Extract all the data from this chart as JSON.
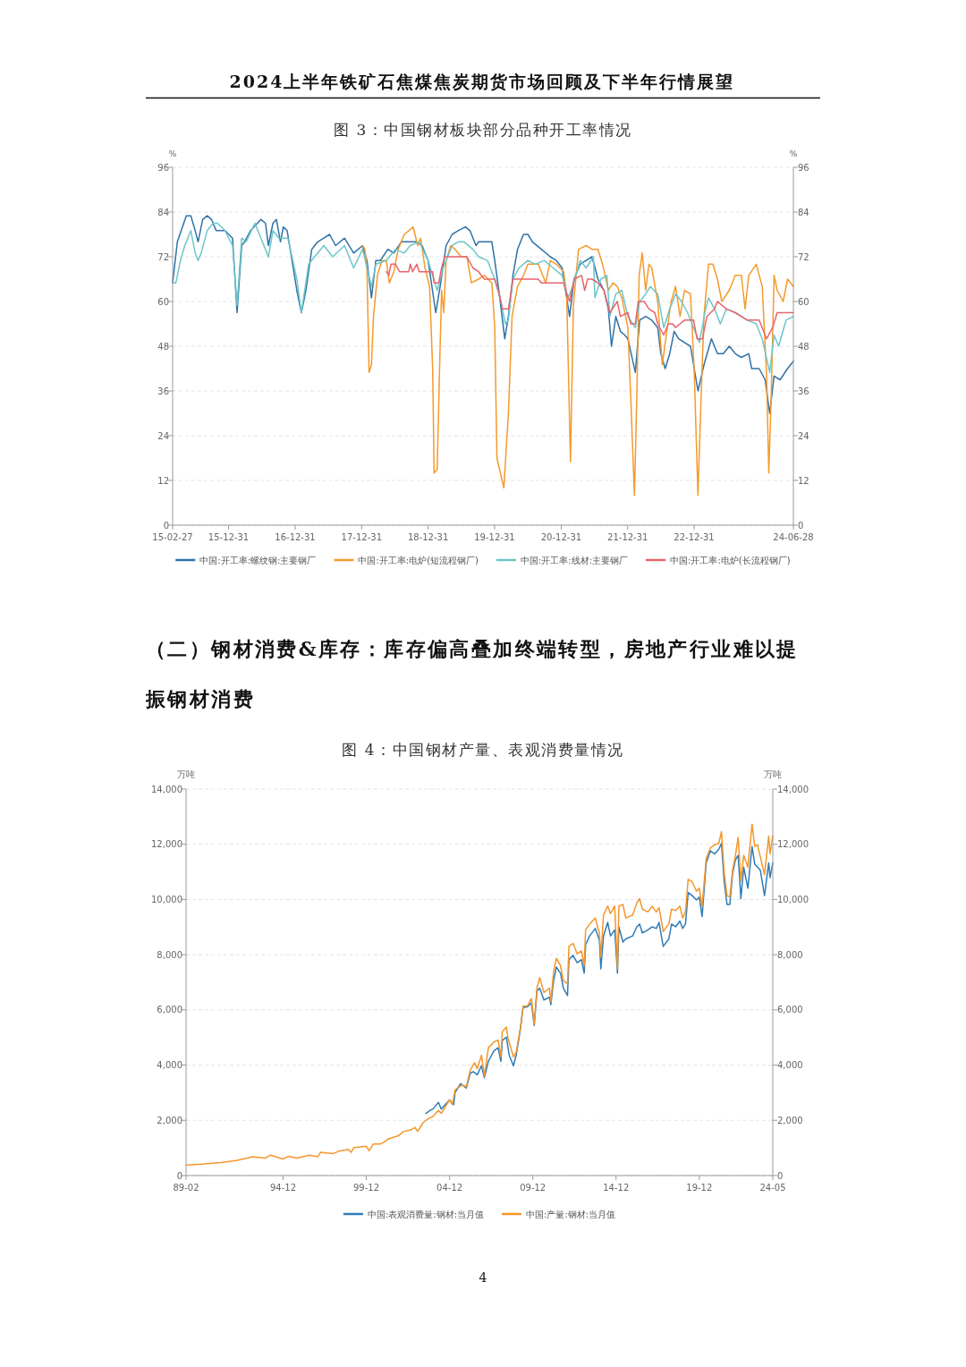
{
  "chart_data": [
    {
      "type": "line",
      "title": "图 3：中国钢材板块部分品种开工率情况",
      "ylabel": "%",
      "y2label": "%",
      "grid": "y",
      "legend": "bottom",
      "annotations": [
        "2024上半年铁矿石焦煤焦炭期货市场回顾及下半年行情展望"
      ],
      "xlim": [
        "2015-02-27",
        "2024-06-28"
      ],
      "xticks": [
        {
          "value": "2015-02-27",
          "label": "15-02-27"
        },
        {
          "value": "2015-12-31",
          "label": "15-12-31"
        },
        {
          "value": "2016-12-31",
          "label": "16-12-31"
        },
        {
          "value": "2017-12-31",
          "label": "17-12-31"
        },
        {
          "value": "2018-12-31",
          "label": "18-12-31"
        },
        {
          "value": "2019-12-31",
          "label": "19-12-31"
        },
        {
          "value": "2020-12-31",
          "label": "20-12-31"
        },
        {
          "value": "2021-12-31",
          "label": "21-12-31"
        },
        {
          "value": "2022-12-31",
          "label": "22-12-31"
        },
        {
          "value": "2024-06-28",
          "label": "24-06-28"
        }
      ],
      "ylim": [
        0,
        96
      ],
      "yticks": [
        0,
        12,
        24,
        36,
        48,
        60,
        72,
        84,
        96
      ],
      "y2lim": [
        0,
        96
      ],
      "y2ticks": [
        0,
        12,
        24,
        36,
        48,
        60,
        72,
        84,
        96
      ],
      "series": [
        {
          "name": "中国:开工率:螺纹钢:主要钢厂",
          "color": "#2e72a8",
          "x": [
            "2015-02-27",
            "2015-03-25",
            "2015-05-13",
            "2015-06-07",
            "2015-07-01",
            "2015-07-17",
            "2015-08-11",
            "2015-09-05",
            "2015-09-29",
            "2015-10-24",
            "2015-12-12",
            "2016-01-22",
            "2016-02-16",
            "2016-03-12",
            "2016-03-28",
            "2016-04-30",
            "2016-06-26",
            "2016-07-21",
            "2016-08-06",
            "2016-08-31",
            "2016-09-19",
            "2016-10-11",
            "2016-10-27",
            "2016-11-17",
            "2016-12-07",
            "2017-01-09",
            "2017-02-03",
            "2017-02-28",
            "2017-04-01",
            "2017-05-04",
            "2017-06-06",
            "2017-07-08",
            "2017-08-10",
            "2017-09-28",
            "2017-11-17",
            "2018-01-05",
            "2018-01-29",
            "2018-02-23",
            "2018-03-19",
            "2018-04-13",
            "2018-05-24",
            "2018-06-26",
            "2018-08-06",
            "2018-09-24",
            "2018-10-27",
            "2018-11-28",
            "2018-12-31",
            "2019-02-11",
            "2019-03-07",
            "2019-04-09",
            "2019-05-12",
            "2019-06-14",
            "2019-07-24",
            "2019-08-18",
            "2019-09-20",
            "2019-10-04",
            "2019-11-22",
            "2019-12-16",
            "2020-01-01",
            "2020-01-26",
            "2020-02-25",
            "2020-03-16",
            "2020-04-10",
            "2020-05-05",
            "2020-06-07",
            "2020-07-01",
            "2020-07-26",
            "2020-09-13",
            "2020-11-01",
            "2020-12-04",
            "2021-01-05",
            "2021-01-30",
            "2021-02-15",
            "2021-03-12",
            "2021-04-14",
            "2021-05-17",
            "2021-06-18",
            "2021-07-21",
            "2021-08-23",
            "2021-09-16",
            "2021-10-03",
            "2021-10-27",
            "2021-11-21",
            "2021-12-15",
            "2022-01-01",
            "2022-02-11",
            "2022-03-07",
            "2022-04-09",
            "2022-05-12",
            "2022-06-14",
            "2022-07-01",
            "2022-07-25",
            "2022-08-19",
            "2022-09-12",
            "2022-10-07",
            "2022-11-08",
            "2022-12-11",
            "2023-01-21",
            "2023-02-23",
            "2023-04-05",
            "2023-05-08",
            "2023-06-10",
            "2023-07-12",
            "2023-08-14",
            "2023-09-16",
            "2023-10-27",
            "2023-11-12",
            "2023-12-23",
            "2024-01-25",
            "2024-02-19",
            "2024-03-14",
            "2024-04-16",
            "2024-05-27",
            "2024-06-28"
          ],
          "values": [
            65,
            76,
            83,
            83,
            79,
            76,
            82,
            83,
            82,
            79,
            79,
            77,
            57,
            75,
            76,
            79,
            82,
            81,
            75,
            81,
            82,
            76,
            80,
            79,
            73,
            63,
            57,
            63,
            74,
            76,
            77,
            78,
            75,
            77,
            73,
            75,
            71,
            61,
            71,
            71,
            74,
            73,
            76,
            76,
            76,
            75,
            71,
            57,
            64,
            75,
            78,
            79,
            80,
            79,
            75,
            76,
            76,
            76,
            71,
            62,
            50,
            56,
            67,
            74,
            78,
            78,
            76,
            74,
            72,
            71,
            69,
            61,
            56,
            66,
            70,
            71,
            72,
            66,
            63,
            58,
            48,
            56,
            52,
            51,
            50,
            41,
            55,
            56,
            55,
            53,
            46,
            42,
            46,
            52,
            50,
            49,
            48,
            36,
            43,
            50,
            46,
            46,
            48,
            46,
            45,
            46,
            42,
            42,
            39,
            30,
            40,
            39,
            42,
            44
          ]
        },
        {
          "name": "中国:开工率:电炉(短流程钢厂)",
          "color": "#f59a2c",
          "x": [
            "2018-01-05",
            "2018-01-18",
            "2018-01-29",
            "2018-02-10",
            "2018-02-23",
            "2018-03-06",
            "2018-03-28",
            "2018-04-21",
            "2018-05-16",
            "2018-06-01",
            "2018-06-26",
            "2018-07-20",
            "2018-08-22",
            "2018-09-16",
            "2018-10-10",
            "2018-11-04",
            "2018-11-20",
            "2018-12-14",
            "2019-01-08",
            "2019-01-25",
            "2019-02-02",
            "2019-02-19",
            "2019-03-04",
            "2019-03-15",
            "2019-03-27",
            "2019-04-09",
            "2019-05-04",
            "2019-05-28",
            "2019-06-30",
            "2019-08-01",
            "2019-08-26",
            "2019-10-04",
            "2019-11-05",
            "2019-12-16",
            "2020-01-01",
            "2020-01-13",
            "2020-02-20",
            "2020-03-16",
            "2020-04-05",
            "2020-05-05",
            "2020-06-07",
            "2020-07-01",
            "2020-08-27",
            "2020-10-07",
            "2020-11-01",
            "2020-12-04",
            "2021-01-13",
            "2021-01-30",
            "2021-02-20",
            "2021-03-08",
            "2021-04-05",
            "2021-05-17",
            "2021-06-18",
            "2021-07-21",
            "2021-08-15",
            "2021-09-16",
            "2021-10-11",
            "2021-11-04",
            "2021-11-29",
            "2022-01-01",
            "2022-01-17",
            "2022-02-06",
            "2022-02-19",
            "2022-03-04",
            "2022-03-21",
            "2022-04-01",
            "2022-04-09",
            "2022-04-27",
            "2022-05-12",
            "2022-06-14",
            "2022-07-09",
            "2022-08-03",
            "2022-08-27",
            "2022-09-20",
            "2022-10-15",
            "2022-11-08",
            "2022-12-11",
            "2022-12-31",
            "2023-01-21",
            "2023-02-07",
            "2023-02-23",
            "2023-03-20",
            "2023-04-13",
            "2023-05-08",
            "2023-06-01",
            "2023-07-12",
            "2023-08-14",
            "2023-09-16",
            "2023-10-07",
            "2023-10-27",
            "2023-12-07",
            "2024-01-09",
            "2024-02-02",
            "2024-02-14",
            "2024-02-27",
            "2024-03-14",
            "2024-03-31",
            "2024-05-03",
            "2024-05-27",
            "2024-06-28"
          ],
          "values": [
            75,
            74,
            69,
            41,
            43,
            56,
            67,
            71,
            71,
            65,
            68,
            74,
            78,
            79,
            80,
            75,
            77,
            69,
            64,
            42,
            14,
            15,
            42,
            63,
            57,
            71,
            75,
            74,
            72,
            72,
            65,
            66,
            67,
            65,
            53,
            18,
            10,
            30,
            56,
            64,
            67,
            70,
            70,
            65,
            71,
            70,
            68,
            62,
            17,
            59,
            74,
            75,
            74,
            74,
            70,
            63,
            65,
            64,
            61,
            53,
            34,
            8,
            34,
            67,
            73,
            67,
            63,
            70,
            69,
            60,
            43,
            52,
            60,
            64,
            56,
            63,
            62,
            42,
            8,
            34,
            56,
            70,
            70,
            66,
            60,
            63,
            67,
            67,
            58,
            67,
            70,
            64,
            40,
            14,
            34,
            67,
            63,
            60,
            66,
            64
          ]
        },
        {
          "name": "中国:开工率:线材:主要钢厂",
          "color": "#6cc6c9",
          "x": [
            "2015-02-27",
            "2015-03-17",
            "2015-04-11",
            "2015-05-05",
            "2015-06-07",
            "2015-07-01",
            "2015-07-17",
            "2015-08-03",
            "2015-09-05",
            "2015-10-07",
            "2015-11-01",
            "2015-12-12",
            "2016-01-22",
            "2016-02-16",
            "2016-03-12",
            "2016-04-05",
            "2016-05-24",
            "2016-06-26",
            "2016-08-06",
            "2016-08-31",
            "2016-10-03",
            "2016-11-21",
            "2017-01-09",
            "2017-02-03",
            "2017-03-15",
            "2017-04-17",
            "2017-06-06",
            "2017-07-25",
            "2017-09-28",
            "2017-11-17",
            "2018-01-05",
            "2018-02-23",
            "2018-03-19",
            "2018-05-16",
            "2018-07-04",
            "2018-08-22",
            "2018-09-24",
            "2018-11-12",
            "2018-12-31",
            "2019-02-19",
            "2019-03-24",
            "2019-05-12",
            "2019-06-14",
            "2019-07-16",
            "2019-09-03",
            "2019-10-04",
            "2019-11-22",
            "2020-01-01",
            "2020-02-04",
            "2020-02-28",
            "2020-03-16",
            "2020-04-10",
            "2020-05-13",
            "2020-07-01",
            "2020-08-11",
            "2020-09-29",
            "2020-11-17",
            "2021-01-05",
            "2021-02-07",
            "2021-03-04",
            "2021-04-14",
            "2021-05-17",
            "2021-06-26",
            "2021-07-04",
            "2021-08-06",
            "2021-09-08",
            "2021-09-24",
            "2021-10-27",
            "2021-11-29",
            "2022-01-01",
            "2022-02-11",
            "2022-03-07",
            "2022-04-09",
            "2022-05-04",
            "2022-06-14",
            "2022-07-17",
            "2022-08-19",
            "2022-09-20",
            "2022-10-23",
            "2022-11-25",
            "2022-12-28",
            "2023-01-29",
            "2023-03-04",
            "2023-03-20",
            "2023-04-22",
            "2023-05-24",
            "2023-06-26",
            "2023-08-14",
            "2023-10-19",
            "2023-12-07",
            "2024-01-09",
            "2024-02-19",
            "2024-03-14",
            "2024-04-08",
            "2024-05-19",
            "2024-06-28"
          ],
          "values": [
            65,
            65,
            71,
            75,
            79,
            73,
            71,
            73,
            79,
            81,
            81,
            79,
            75,
            59,
            77,
            76,
            81,
            77,
            72,
            79,
            77,
            77,
            66,
            57,
            70,
            72,
            75,
            72,
            75,
            69,
            74,
            64,
            70,
            71,
            74,
            73,
            75,
            76,
            71,
            63,
            69,
            75,
            76,
            76,
            74,
            72,
            71,
            66,
            60,
            54,
            55,
            66,
            69,
            71,
            70,
            71,
            69,
            67,
            61,
            64,
            71,
            69,
            72,
            61,
            66,
            67,
            56,
            62,
            63,
            56,
            53,
            60,
            62,
            64,
            62,
            53,
            58,
            62,
            60,
            57,
            53,
            49,
            58,
            61,
            58,
            54,
            58,
            57,
            55,
            54,
            50,
            41,
            51,
            48,
            55,
            56
          ]
        },
        {
          "name": "中国:开工率:电炉(长流程钢厂)",
          "color": "#e8646c",
          "x": [
            "2018-05-16",
            "2018-05-29",
            "2018-06-10",
            "2018-07-04",
            "2018-07-28",
            "2018-09-16",
            "2018-09-24",
            "2018-10-07",
            "2018-10-30",
            "2018-11-12",
            "2019-01-25",
            "2019-02-02",
            "2019-02-27",
            "2019-03-15",
            "2019-04-01",
            "2019-08-01",
            "2019-09-03",
            "2019-10-04",
            "2019-11-05",
            "2020-01-01",
            "2020-01-26",
            "2020-02-12",
            "2020-03-16",
            "2020-04-10",
            "2020-04-27",
            "2020-08-27",
            "2020-09-13",
            "2021-01-13",
            "2021-01-30",
            "2021-02-15",
            "2021-03-12",
            "2021-04-22",
            "2021-05-09",
            "2021-05-25",
            "2021-06-18",
            "2021-07-21",
            "2021-08-23",
            "2021-09-24",
            "2021-11-04",
            "2021-11-21",
            "2022-01-01",
            "2022-01-17",
            "2022-02-11",
            "2022-02-27",
            "2022-04-01",
            "2022-04-27",
            "2022-05-29",
            "2022-06-14",
            "2022-07-17",
            "2022-08-11",
            "2022-09-04",
            "2022-09-20",
            "2022-11-08",
            "2022-12-28",
            "2023-01-16",
            "2023-02-15",
            "2023-03-11",
            "2023-04-22",
            "2023-05-08",
            "2023-06-26",
            "2023-08-14",
            "2023-10-19",
            "2023-12-23",
            "2024-02-02",
            "2024-03-06",
            "2024-03-31",
            "2024-06-28"
          ],
          "values": [
            68,
            67,
            70,
            70,
            68,
            68,
            70,
            68,
            70,
            68,
            68,
            65,
            65,
            69,
            72,
            72,
            69,
            68,
            66,
            66,
            62,
            58,
            58,
            66,
            66,
            66,
            65,
            65,
            62,
            60,
            66,
            67,
            63,
            66,
            66,
            65,
            63,
            57,
            60,
            56,
            57,
            54,
            54,
            60,
            60,
            58,
            57,
            54,
            51,
            54,
            54,
            53,
            55,
            55,
            50,
            50,
            56,
            58,
            60,
            58,
            57,
            55,
            55,
            50,
            53,
            57,
            57
          ]
        }
      ]
    },
    {
      "type": "line",
      "title": "图 4：中国钢材产量、表观消费量情况",
      "ylabel": "万吨",
      "y2label": "万吨",
      "grid": "y",
      "legend": "bottom",
      "annotations": [
        "（二）钢材消费&库存：库存偏高叠加终端转型，房地产行业难以提振钢材消费",
        "4"
      ],
      "xlim": [
        "1989-02",
        "2024-05"
      ],
      "xticks": [
        {
          "value": "1989-02",
          "label": "89-02"
        },
        {
          "value": "1994-12",
          "label": "94-12"
        },
        {
          "value": "1999-12",
          "label": "99-12"
        },
        {
          "value": "2004-12",
          "label": "04-12"
        },
        {
          "value": "2009-12",
          "label": "09-12"
        },
        {
          "value": "2014-12",
          "label": "14-12"
        },
        {
          "value": "2019-12",
          "label": "19-12"
        },
        {
          "value": "2024-05",
          "label": "24-05"
        }
      ],
      "ylim": [
        0,
        14000
      ],
      "yticks": [
        0,
        {
          "value": 2000,
          "label": "2,000"
        },
        {
          "value": 4000,
          "label": "4,000"
        },
        {
          "value": 6000,
          "label": "6,000"
        },
        {
          "value": 8000,
          "label": "8,000"
        },
        {
          "value": 10000,
          "label": "10,000"
        },
        {
          "value": 12000,
          "label": "12,000"
        },
        {
          "value": 14000,
          "label": "14,000"
        }
      ],
      "y2lim": [
        0,
        14000
      ],
      "y2ticks": [
        0,
        {
          "value": 2000,
          "label": "2,000"
        },
        {
          "value": 4000,
          "label": "4,000"
        },
        {
          "value": 6000,
          "label": "6,000"
        },
        {
          "value": 8000,
          "label": "8,000"
        },
        {
          "value": 10000,
          "label": "10,000"
        },
        {
          "value": 12000,
          "label": "12,000"
        },
        {
          "value": 14000,
          "label": "14,000"
        }
      ],
      "series": [
        {
          "name": "中国:表观消费量:钢材:当月值",
          "color": "#2f7cb8",
          "x": [
            "2003-07",
            "2003-10",
            "2003-12",
            "2004-04",
            "2004-06",
            "2004-12",
            "2005-03",
            "2005-04",
            "2005-08",
            "2005-12",
            "2006-03",
            "2006-05",
            "2006-08",
            "2006-11",
            "2007-01",
            "2007-04",
            "2007-08",
            "2007-11",
            "2008-01",
            "2008-02",
            "2008-05",
            "2008-07",
            "2008-10",
            "2008-12",
            "2009-03",
            "2009-05",
            "2009-08",
            "2009-11",
            "2010-01",
            "2010-03",
            "2010-05",
            "2010-08",
            "2010-12",
            "2011-01",
            "2011-03",
            "2011-05",
            "2011-08",
            "2011-10",
            "2012-01",
            "2012-02",
            "2012-05",
            "2012-08",
            "2012-11",
            "2013-01",
            "2013-02",
            "2013-05",
            "2013-09",
            "2013-12",
            "2014-01",
            "2014-03",
            "2014-06",
            "2014-08",
            "2014-11",
            "2015-01",
            "2015-02",
            "2015-05",
            "2015-07",
            "2015-12",
            "2016-03",
            "2016-05",
            "2016-07",
            "2016-11",
            "2017-02",
            "2017-05",
            "2017-07",
            "2017-10",
            "2018-02",
            "2018-04",
            "2018-07",
            "2018-10",
            "2018-12",
            "2019-02",
            "2019-04",
            "2019-07",
            "2019-10",
            "2019-12",
            "2020-02",
            "2020-05",
            "2020-08",
            "2020-11",
            "2021-02",
            "2021-04",
            "2021-06",
            "2021-08",
            "2021-10",
            "2021-12",
            "2022-02",
            "2022-04",
            "2022-06",
            "2022-08",
            "2022-11",
            "2023-02",
            "2023-04",
            "2023-06",
            "2023-08",
            "2023-11",
            "2024-02",
            "2024-03",
            "2024-05"
          ],
          "values": [
            2250,
            2360,
            2410,
            2650,
            2410,
            2740,
            2570,
            3010,
            3330,
            3170,
            3710,
            3760,
            3650,
            3980,
            3550,
            4140,
            4520,
            4630,
            4140,
            4900,
            5010,
            4360,
            3980,
            4360,
            5280,
            6090,
            6110,
            6250,
            5440,
            6680,
            6790,
            6360,
            6460,
            6190,
            7060,
            7550,
            7330,
            6790,
            6520,
            7820,
            7980,
            7710,
            7820,
            7330,
            8360,
            8680,
            8950,
            8520,
            7490,
            8680,
            9170,
            8680,
            8900,
            7330,
            9010,
            8460,
            8570,
            8680,
            9010,
            9110,
            8790,
            8900,
            9010,
            8950,
            9170,
            8300,
            8570,
            9110,
            9010,
            9220,
            8950,
            9110,
            10250,
            10140,
            9980,
            10090,
            9380,
            11330,
            11760,
            11650,
            11820,
            12030,
            10630,
            9820,
            9820,
            10950,
            11440,
            11600,
            10030,
            11170,
            10410,
            11920,
            11280,
            11170,
            11060,
            10140,
            11330,
            10790,
            11330
          ]
        },
        {
          "name": "中国:产量:钢材:当月值",
          "color": "#f5962a",
          "x": [
            "1989-02",
            "1990-01",
            "1991-03",
            "1992-03",
            "1993-02",
            "1993-11",
            "1994-03",
            "1994-12",
            "1995-04",
            "1995-10",
            "1996-07",
            "1997-01",
            "1997-03",
            "1997-12",
            "1998-04",
            "1998-11",
            "1999-01",
            "1999-03",
            "1999-12",
            "2000-02",
            "2000-05",
            "2000-10",
            "2001-01",
            "2001-04",
            "2001-11",
            "2002-03",
            "2002-08",
            "2002-11",
            "2003-01",
            "2003-05",
            "2003-09",
            "2003-12",
            "2004-04",
            "2004-06",
            "2004-12",
            "2005-02",
            "2005-04",
            "2005-09",
            "2005-12",
            "2006-03",
            "2006-06",
            "2006-08",
            "2006-11",
            "2007-01",
            "2007-04",
            "2007-08",
            "2007-11",
            "2008-01",
            "2008-02",
            "2008-05",
            "2008-06",
            "2008-10",
            "2008-12",
            "2009-03",
            "2009-05",
            "2009-08",
            "2009-11",
            "2010-01",
            "2010-03",
            "2010-05",
            "2010-08",
            "2010-12",
            "2011-01",
            "2011-03",
            "2011-05",
            "2011-08",
            "2011-10",
            "2012-01",
            "2012-02",
            "2012-05",
            "2012-08",
            "2012-11",
            "2013-01",
            "2013-02",
            "2013-05",
            "2013-09",
            "2013-12",
            "2014-01",
            "2014-03",
            "2014-06",
            "2014-08",
            "2014-11",
            "2015-01",
            "2015-02",
            "2015-05",
            "2015-07",
            "2015-12",
            "2016-03",
            "2016-05",
            "2016-07",
            "2016-11",
            "2017-02",
            "2017-05",
            "2017-07",
            "2017-10",
            "2018-02",
            "2018-04",
            "2018-07",
            "2018-10",
            "2018-12",
            "2019-02",
            "2019-04",
            "2019-07",
            "2019-10",
            "2019-12",
            "2020-02",
            "2020-05",
            "2020-08",
            "2020-11",
            "2021-02",
            "2021-04",
            "2021-06",
            "2021-08",
            "2021-10",
            "2021-12",
            "2022-02",
            "2022-04",
            "2022-06",
            "2022-08",
            "2022-11",
            "2023-02",
            "2023-04",
            "2023-06",
            "2023-08",
            "2023-11",
            "2024-02",
            "2024-03",
            "2024-05"
          ],
          "values": [
            380,
            410,
            470,
            550,
            680,
            630,
            740,
            600,
            700,
            630,
            740,
            680,
            840,
            790,
            880,
            950,
            840,
            1010,
            1060,
            900,
            1140,
            1140,
            1220,
            1330,
            1440,
            1600,
            1650,
            1740,
            1600,
            1920,
            2070,
            2140,
            2360,
            2250,
            2740,
            2570,
            3110,
            3280,
            3220,
            3820,
            4090,
            3870,
            4360,
            3600,
            4630,
            4840,
            4900,
            4300,
            5220,
            5380,
            5000,
            4300,
            4470,
            5330,
            6140,
            6140,
            6410,
            5490,
            6790,
            7170,
            6630,
            6790,
            6300,
            7380,
            7870,
            7600,
            7060,
            6950,
            8300,
            8410,
            8030,
            8140,
            7600,
            8900,
            9110,
            9330,
            8790,
            7920,
            9440,
            9760,
            9490,
            9760,
            7490,
            9760,
            9820,
            9330,
            9440,
            9870,
            10030,
            9650,
            9550,
            9760,
            9550,
            9710,
            8840,
            9110,
            9650,
            9600,
            9760,
            9330,
            9550,
            10730,
            10630,
            10300,
            10410,
            9760,
            11490,
            11870,
            11980,
            12030,
            12460,
            10950,
            10140,
            10090,
            11060,
            11600,
            12250,
            10680,
            11600,
            11170,
            12730,
            11920,
            11980,
            11550,
            10900,
            12300,
            11650,
            12300
          ]
        }
      ]
    }
  ]
}
